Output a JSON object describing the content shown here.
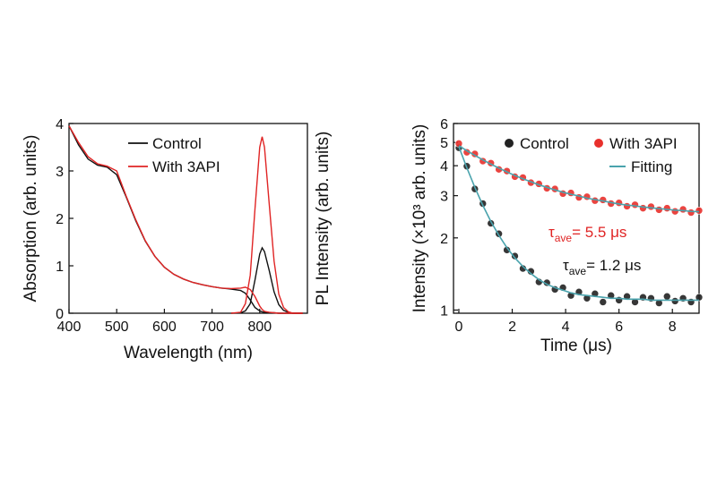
{
  "chart_data": [
    {
      "type": "line",
      "xlabel": "Wavelength (nm)",
      "ylabel": "Absorption (arb. units)",
      "y2label": "PL Intensity (arb. units)",
      "xlim": [
        400,
        900
      ],
      "ylim": [
        0,
        4
      ],
      "xticks": [
        400,
        500,
        600,
        700,
        800
      ],
      "yticks": [
        0,
        1,
        2,
        3,
        4
      ],
      "x": [
        400,
        420,
        440,
        460,
        480,
        500,
        520,
        540,
        560,
        580,
        600,
        620,
        640,
        660,
        680,
        700,
        720,
        740,
        760,
        770,
        780,
        790,
        800,
        805,
        810,
        820,
        830,
        840,
        850,
        860,
        870,
        880,
        890
      ],
      "series": [
        {
          "name": "Control",
          "color": "#111111",
          "values": [
            3.95,
            3.55,
            3.25,
            3.12,
            3.08,
            2.92,
            2.45,
            1.95,
            1.52,
            1.2,
            0.97,
            0.82,
            0.72,
            0.65,
            0.6,
            0.56,
            0.53,
            0.51,
            0.48,
            0.42,
            0.28,
            0.12,
            0.05,
            0.03,
            0.02,
            0.01,
            0.01,
            0,
            0,
            0,
            0,
            0,
            0
          ],
          "pl_values": [
            null,
            null,
            null,
            null,
            null,
            null,
            null,
            null,
            null,
            null,
            null,
            null,
            null,
            null,
            null,
            null,
            null,
            0,
            0.01,
            0.05,
            0.2,
            0.7,
            1.25,
            1.38,
            1.3,
            0.9,
            0.45,
            0.18,
            0.06,
            0.02,
            0,
            0,
            0
          ]
        },
        {
          "name": "With 3API",
          "color": "#e02424",
          "values": [
            3.95,
            3.6,
            3.3,
            3.15,
            3.1,
            3.0,
            2.47,
            1.97,
            1.53,
            1.2,
            0.97,
            0.82,
            0.72,
            0.65,
            0.6,
            0.56,
            0.53,
            0.52,
            0.53,
            0.55,
            0.5,
            0.35,
            0.15,
            0.08,
            0.04,
            0.02,
            0.01,
            0,
            0,
            0,
            0,
            0,
            0
          ],
          "pl_values": [
            null,
            null,
            null,
            null,
            null,
            null,
            null,
            null,
            null,
            null,
            null,
            null,
            null,
            null,
            null,
            null,
            null,
            0,
            0.02,
            0.2,
            0.8,
            2.2,
            3.5,
            3.72,
            3.5,
            2.3,
            1.1,
            0.4,
            0.12,
            0.03,
            0,
            0,
            0
          ]
        }
      ]
    },
    {
      "type": "scatter",
      "log_y": true,
      "xlabel": "Time (μs)",
      "ylabel": "Intensity (×10³ arb. units)",
      "xlim": [
        -0.2,
        9
      ],
      "ylim": [
        0.97,
        6
      ],
      "xticks": [
        0,
        2,
        4,
        6,
        8
      ],
      "yticks": [
        1,
        2,
        3,
        4,
        5,
        6
      ],
      "x": [
        0,
        0.3,
        0.6,
        0.9,
        1.2,
        1.5,
        1.8,
        2.1,
        2.4,
        2.7,
        3.0,
        3.3,
        3.6,
        3.9,
        4.2,
        4.5,
        4.8,
        5.1,
        5.4,
        5.7,
        6.0,
        6.3,
        6.6,
        6.9,
        7.2,
        7.5,
        7.8,
        8.1,
        8.4,
        8.7,
        9.0
      ],
      "series": [
        {
          "name": "Control",
          "color": "#222222",
          "values": [
            4.75,
            3.98,
            3.2,
            2.78,
            2.3,
            2.08,
            1.78,
            1.68,
            1.49,
            1.45,
            1.31,
            1.3,
            1.22,
            1.24,
            1.15,
            1.19,
            1.12,
            1.17,
            1.08,
            1.15,
            1.1,
            1.14,
            1.08,
            1.13,
            1.12,
            1.07,
            1.14,
            1.09,
            1.12,
            1.08,
            1.13
          ],
          "fit": [
            4.8,
            3.92,
            3.25,
            2.73,
            2.34,
            2.05,
            1.82,
            1.65,
            1.52,
            1.42,
            1.34,
            1.28,
            1.24,
            1.21,
            1.18,
            1.16,
            1.15,
            1.14,
            1.13,
            1.12,
            1.12,
            1.11,
            1.11,
            1.11,
            1.1,
            1.1,
            1.1,
            1.1,
            1.1,
            1.1,
            1.1
          ]
        },
        {
          "name": "With 3API",
          "color": "#e8302c",
          "values": [
            4.95,
            4.55,
            4.48,
            4.18,
            4.1,
            3.86,
            3.8,
            3.6,
            3.57,
            3.4,
            3.36,
            3.22,
            3.2,
            3.06,
            3.08,
            2.95,
            2.97,
            2.86,
            2.88,
            2.78,
            2.8,
            2.71,
            2.75,
            2.66,
            2.7,
            2.62,
            2.66,
            2.58,
            2.63,
            2.55,
            2.6
          ],
          "fit": [
            4.85,
            4.62,
            4.42,
            4.23,
            4.06,
            3.91,
            3.77,
            3.64,
            3.53,
            3.43,
            3.33,
            3.25,
            3.17,
            3.1,
            3.04,
            2.99,
            2.93,
            2.89,
            2.85,
            2.81,
            2.77,
            2.74,
            2.72,
            2.69,
            2.67,
            2.65,
            2.63,
            2.61,
            2.6,
            2.58,
            2.57
          ]
        }
      ],
      "fit_legend": {
        "name": "Fitting",
        "color": "#4aa3ad"
      },
      "annotations": [
        {
          "symbol": "τ",
          "subscript": "ave",
          "text": "= 5.5 μs",
          "color": "#e02424"
        },
        {
          "symbol": "τ",
          "subscript": "ave",
          "text": "= 1.2 μs",
          "color": "#111111"
        }
      ]
    }
  ]
}
